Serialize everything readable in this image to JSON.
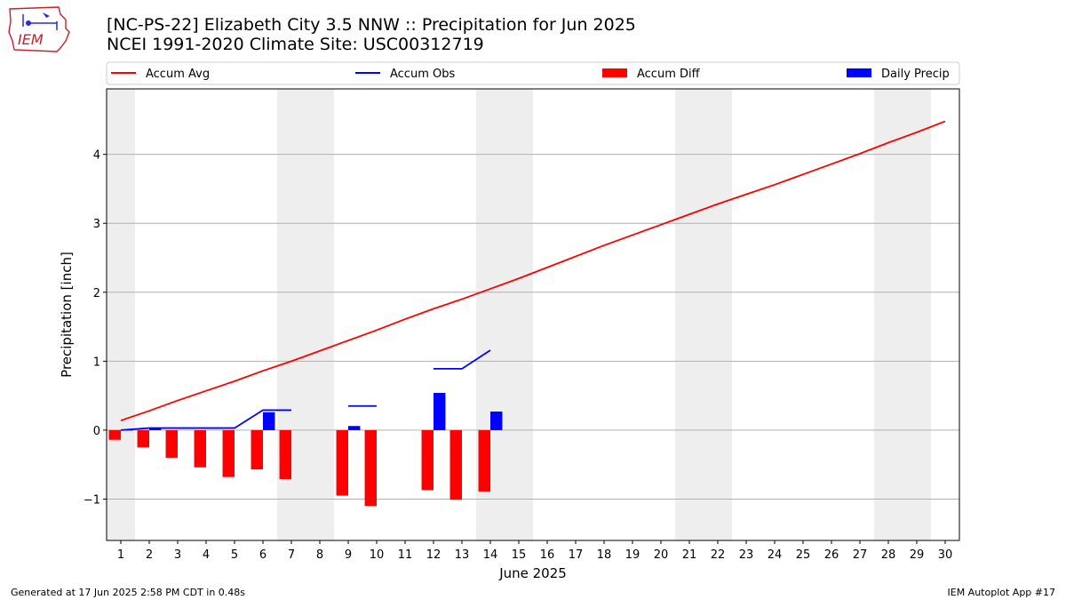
{
  "header": {
    "logo_text": "IEM",
    "title_line1": "[NC-PS-22] Elizabeth City 3.5 NNW :: Precipitation for Jun 2025",
    "title_line2": "NCEI 1991-2020 Climate Site: USC00312719"
  },
  "footer": {
    "generated": "Generated at 17 Jun 2025 2:58 PM CDT in 0.48s",
    "app": "IEM Autoplot App #17"
  },
  "colors": {
    "avg": "#ff0000",
    "obs": "#0000ff",
    "diff": "#ff0000",
    "precip": "#0000ff",
    "weekend_band": "#eeeeee",
    "grid": "#b0b0b0"
  },
  "chart_data": {
    "type": "bar",
    "xlabel": "June 2025",
    "ylabel": "Precipitation [inch]",
    "xlim": [
      0.5,
      30.5
    ],
    "ylim": [
      -1.6,
      4.95
    ],
    "yticks": [
      -1,
      0,
      1,
      2,
      3,
      4
    ],
    "grid": "horizontal",
    "legend_position": "top",
    "days": [
      1,
      2,
      3,
      4,
      5,
      6,
      7,
      8,
      9,
      10,
      11,
      12,
      13,
      14,
      15,
      16,
      17,
      18,
      19,
      20,
      21,
      22,
      23,
      24,
      25,
      26,
      27,
      28,
      29,
      30
    ],
    "weekend_bands": [
      [
        0.5,
        1.5
      ],
      [
        6.5,
        8.5
      ],
      [
        13.5,
        15.5
      ],
      [
        20.5,
        22.5
      ],
      [
        27.5,
        29.5
      ]
    ],
    "series": [
      {
        "name": "Accum Avg",
        "kind": "line",
        "values": [
          0.14,
          0.28,
          0.43,
          0.57,
          0.71,
          0.86,
          1.0,
          1.15,
          1.3,
          1.45,
          1.61,
          1.76,
          1.9,
          2.05,
          2.2,
          2.36,
          2.52,
          2.68,
          2.83,
          2.98,
          3.13,
          3.28,
          3.42,
          3.56,
          3.71,
          3.86,
          4.01,
          4.17,
          4.32,
          4.48
        ]
      },
      {
        "name": "Accum Obs",
        "kind": "line",
        "segments": [
          {
            "days": [
              1,
              2,
              3,
              4,
              5,
              6,
              7
            ],
            "values": [
              0.0,
              0.03,
              0.03,
              0.03,
              0.03,
              0.29,
              0.29
            ]
          },
          {
            "days": [
              9,
              10
            ],
            "values": [
              0.35,
              0.35
            ]
          },
          {
            "days": [
              12,
              13,
              14
            ],
            "values": [
              0.89,
              0.89,
              1.16
            ]
          }
        ]
      },
      {
        "name": "Accum Diff",
        "kind": "bar",
        "points": [
          [
            1,
            -0.14
          ],
          [
            2,
            -0.25
          ],
          [
            3,
            -0.4
          ],
          [
            4,
            -0.54
          ],
          [
            5,
            -0.68
          ],
          [
            6,
            -0.57
          ],
          [
            7,
            -0.71
          ],
          [
            9,
            -0.95
          ],
          [
            10,
            -1.1
          ],
          [
            12,
            -0.87
          ],
          [
            13,
            -1.01
          ],
          [
            14,
            -0.89
          ]
        ]
      },
      {
        "name": "Daily Precip",
        "kind": "bar",
        "points": [
          [
            1,
            0.0
          ],
          [
            2,
            0.03
          ],
          [
            6,
            0.26
          ],
          [
            9,
            0.06
          ],
          [
            12,
            0.54
          ],
          [
            14,
            0.27
          ]
        ]
      }
    ]
  }
}
